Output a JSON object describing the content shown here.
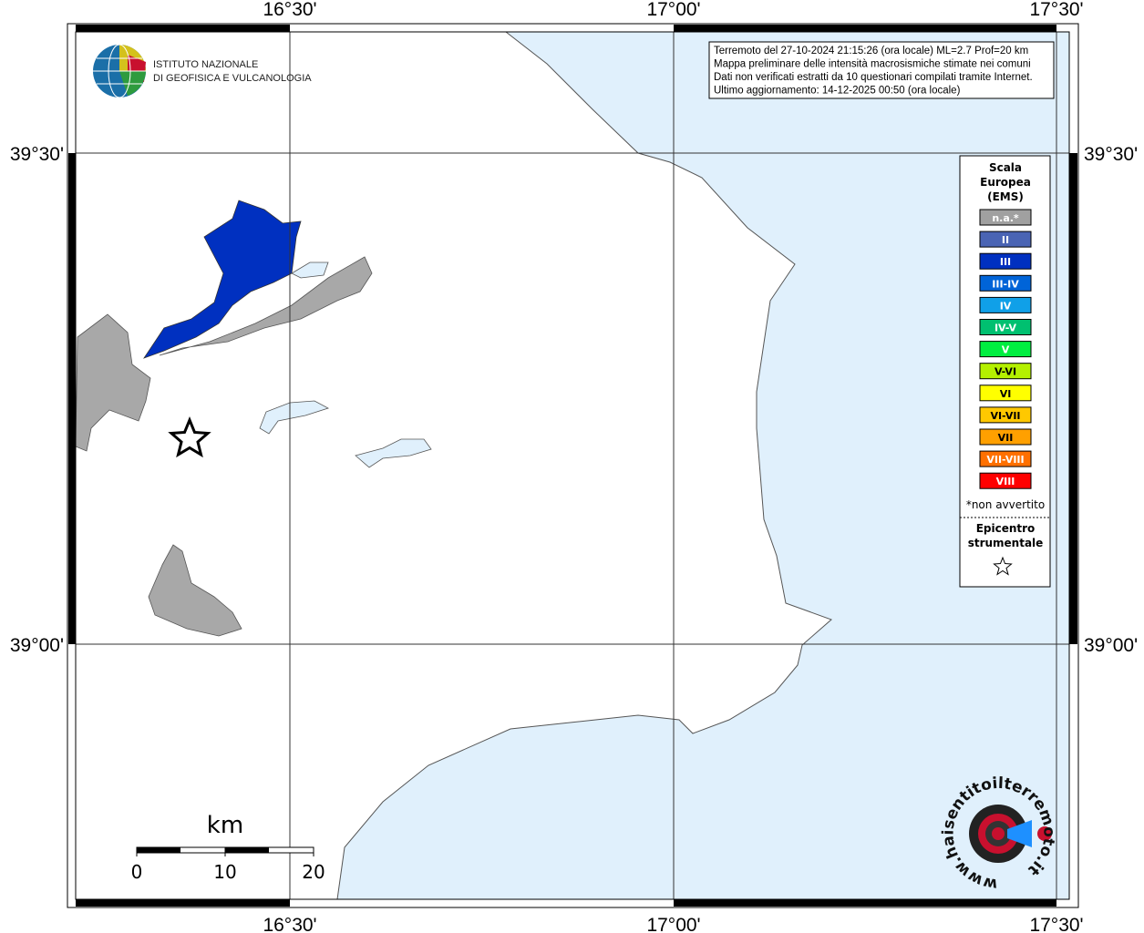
{
  "map": {
    "longitude_labels": [
      "16°30'",
      "17°00'",
      "17°30'"
    ],
    "latitude_labels": [
      "39°30'",
      "39°00'"
    ],
    "info_box": [
      "Terremoto del 27-10-2024 21:15:26 (ora locale) ML=2.7 Prof=20 km",
      "Mappa preliminare delle intensità macrosismiche stimate nei comuni",
      "Dati non verificati estratti da 10 questionari compilati tramite Internet.",
      "Ultimo aggiornamento: 14-12-2025 00:50 (ora locale)"
    ],
    "logo": [
      "ISTITUTO NAZIONALE",
      "DI GEOFISICA E VULCANOLOGIA"
    ],
    "legend": {
      "title": [
        "Scala",
        "Europea",
        "(EMS)"
      ],
      "items": [
        {
          "label": "n.a.*",
          "color": "#a0a0a0"
        },
        {
          "label": "II",
          "color": "#4a64b4"
        },
        {
          "label": "III",
          "color": "#0030c0"
        },
        {
          "label": "III-IV",
          "color": "#0064d8"
        },
        {
          "label": "IV",
          "color": "#10a0e8"
        },
        {
          "label": "IV-V",
          "color": "#00c070"
        },
        {
          "label": "V",
          "color": "#00ee40"
        },
        {
          "label": "V-VI",
          "color": "#b4f000"
        },
        {
          "label": "VI",
          "color": "#ffff00"
        },
        {
          "label": "VI-VII",
          "color": "#ffc800"
        },
        {
          "label": "VII",
          "color": "#ffa000"
        },
        {
          "label": "VII-VIII",
          "color": "#ff7000"
        },
        {
          "label": "VIII",
          "color": "#ff0000"
        }
      ],
      "note": "*non avvertito",
      "epicenter": [
        "Epicentro",
        "strumentale"
      ]
    },
    "scale_bar": {
      "unit": "km",
      "labels": [
        "0",
        "10",
        "20"
      ]
    },
    "site_logo": "www.haisentitoilterremoto.it"
  }
}
